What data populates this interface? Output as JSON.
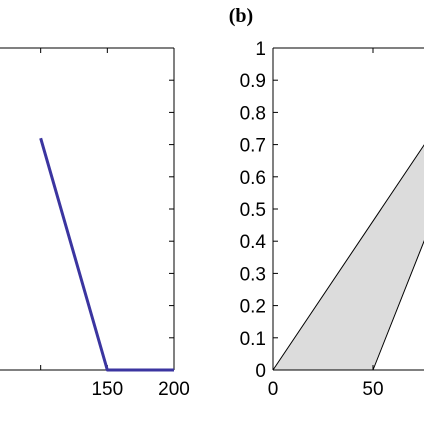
{
  "chart_data": [
    {
      "type": "line",
      "panel_label": "",
      "xlim": [
        100,
        200
      ],
      "x_ticks": [
        150,
        200
      ],
      "x_tick_labels": [
        "150",
        "200"
      ],
      "y_ticks": [],
      "y_tick_labels": [],
      "grid": false,
      "series": [
        {
          "points": [
            [
              100,
              0.72
            ],
            [
              150,
              0
            ],
            [
              200,
              0
            ]
          ],
          "color": "#3b35a0"
        }
      ]
    },
    {
      "type": "area",
      "panel_label": "(b)",
      "xlim": [
        0,
        100
      ],
      "ylim": [
        0,
        1
      ],
      "x_ticks": [
        0,
        50
      ],
      "x_tick_labels": [
        "0",
        "50"
      ],
      "y_ticks": [
        0,
        0.1,
        0.2,
        0.3,
        0.4,
        0.5,
        0.6,
        0.7,
        0.8,
        0.9,
        1
      ],
      "y_tick_labels": [
        "0",
        "0.1",
        "0.2",
        "0.3",
        "0.4",
        "0.5",
        "0.6",
        "0.7",
        "0.8",
        "0.9",
        "1"
      ],
      "grid": false,
      "fill_color": "#dcdcdc",
      "edge_color": "#000000",
      "region": {
        "upper_boundary": [
          [
            0,
            0
          ],
          [
            80,
            0.74
          ]
        ],
        "lower_boundary": [
          [
            50,
            0
          ],
          [
            80,
            0.47
          ]
        ]
      }
    }
  ]
}
